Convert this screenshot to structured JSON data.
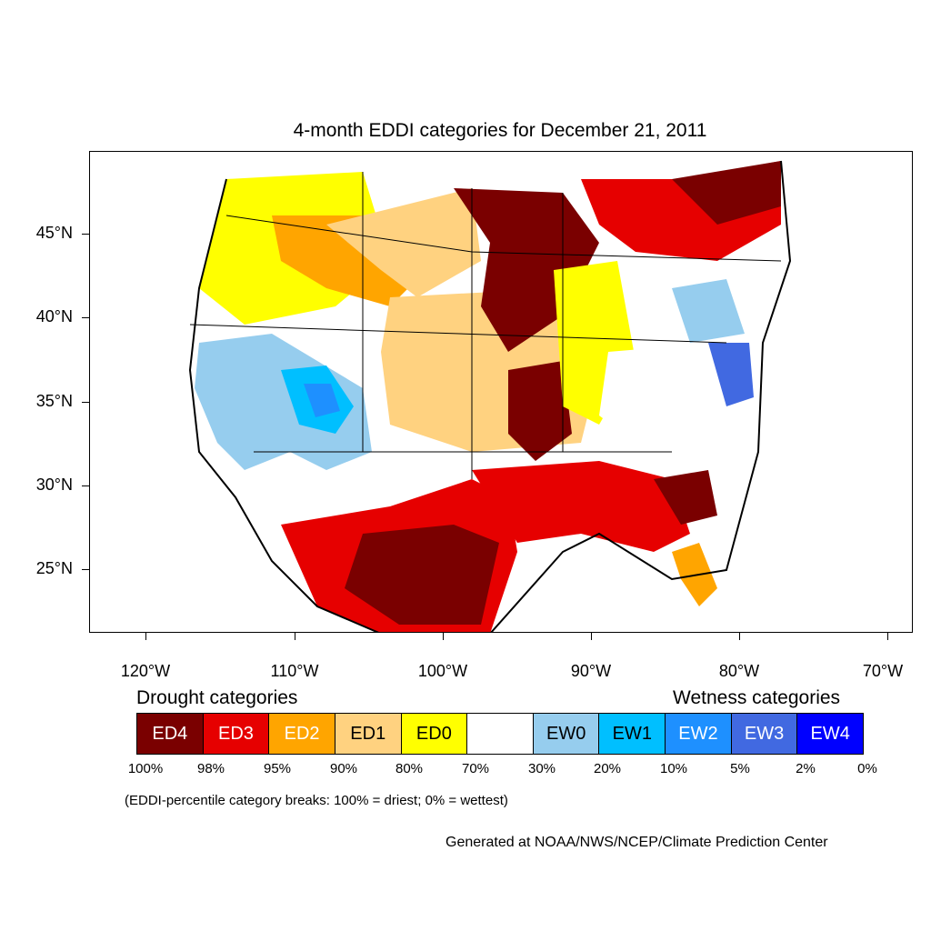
{
  "title": "4-month EDDI categories for December 21, 2011",
  "map": {
    "region": "Contiguous United States and northern Mexico",
    "lat_labels": [
      "45°N",
      "40°N",
      "35°N",
      "30°N",
      "25°N"
    ],
    "lon_labels": [
      "120°W",
      "110°W",
      "100°W",
      "90°W",
      "80°W",
      "70°W"
    ],
    "regions": [
      {
        "name": "upper-midwest-core",
        "category": "ED4"
      },
      {
        "name": "great-lakes-northeast",
        "category": "ED4"
      },
      {
        "name": "texas-northern-mexico",
        "category": "ED4"
      },
      {
        "name": "gulf-coast",
        "category": "ED4"
      },
      {
        "name": "southern-mississippi-valley",
        "category": "ED3"
      },
      {
        "name": "southeast-georgia",
        "category": "ED3"
      },
      {
        "name": "northern-rockies",
        "category": "ED2"
      },
      {
        "name": "central-plains",
        "category": "ED1"
      },
      {
        "name": "southwest-great-basin",
        "category": "EW1"
      },
      {
        "name": "mid-atlantic",
        "category": "EW3"
      },
      {
        "name": "ohio-valley",
        "category": "Neutral"
      }
    ]
  },
  "legend": {
    "drought_heading": "Drought categories",
    "wetness_heading": "Wetness categories",
    "categories": [
      {
        "label": "ED4",
        "color": "#7a0000",
        "text_color": "#ffffff"
      },
      {
        "label": "ED3",
        "color": "#e60000",
        "text_color": "#ffffff"
      },
      {
        "label": "ED2",
        "color": "#ffa500",
        "text_color": "#ffffff"
      },
      {
        "label": "ED1",
        "color": "#ffd280",
        "text_color": "#000000"
      },
      {
        "label": "ED0",
        "color": "#ffff00",
        "text_color": "#000000"
      },
      {
        "label": "",
        "color": "#ffffff",
        "text_color": "#000000"
      },
      {
        "label": "EW0",
        "color": "#96cdee",
        "text_color": "#000000"
      },
      {
        "label": "EW1",
        "color": "#00bfff",
        "text_color": "#000000"
      },
      {
        "label": "EW2",
        "color": "#1e90ff",
        "text_color": "#ffffff"
      },
      {
        "label": "EW3",
        "color": "#4169e1",
        "text_color": "#ffffff"
      },
      {
        "label": "EW4",
        "color": "#0000ff",
        "text_color": "#ffffff"
      }
    ],
    "percentiles": [
      "100%",
      "98%",
      "95%",
      "90%",
      "80%",
      "70%",
      "30%",
      "20%",
      "10%",
      "5%",
      "2%",
      "0%"
    ],
    "note": "(EDDI-percentile category breaks: 100% = driest; 0% = wettest)"
  },
  "credit": "Generated at NOAA/NWS/NCEP/Climate Prediction Center"
}
